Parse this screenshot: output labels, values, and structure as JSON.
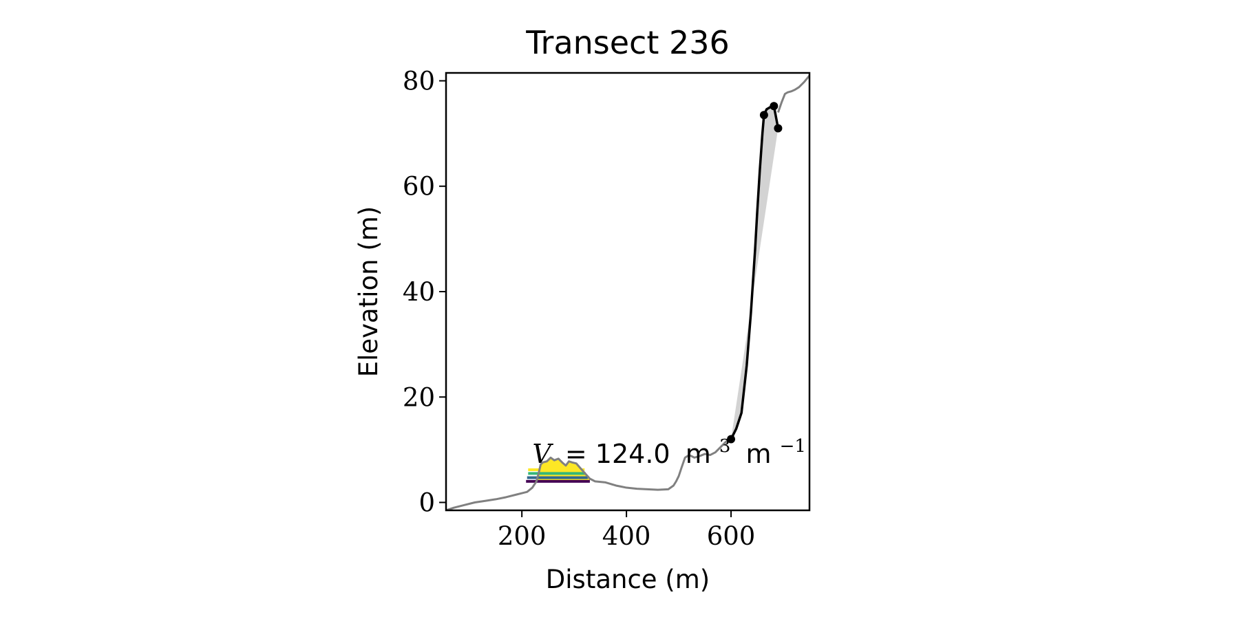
{
  "chart_data": {
    "type": "line",
    "title": "Transect 236",
    "xlabel": "Distance (m)",
    "ylabel": "Elevation (m)",
    "xlim": [
      55,
      750
    ],
    "ylim": [
      -1.5,
      81.5
    ],
    "xticks": [
      200,
      400,
      600
    ],
    "yticks": [
      0,
      20,
      40,
      60,
      80
    ],
    "grid": false,
    "annotation": {
      "var": "V",
      "equals": "= 124.0",
      "unit": "m",
      "exp1": "3",
      "unit2": "m",
      "exp2": "−1",
      "x": 220,
      "y": 7.5
    },
    "colors": {
      "profile": "#808080",
      "cliff": "#000000",
      "cliff_fill": "#d3d3d3",
      "dune_fill": "#fde725",
      "level_colors": [
        "#fde725",
        "#35b779",
        "#31688e",
        "#440154"
      ]
    },
    "series": [
      {
        "role": "profile",
        "x": [
          55,
          70,
          90,
          110,
          130,
          150,
          170,
          190,
          210,
          220,
          228,
          232,
          236,
          240,
          248,
          255,
          262,
          270,
          278,
          284,
          290,
          296,
          304,
          312,
          320,
          330,
          340,
          350,
          360,
          370,
          380,
          390,
          400,
          420,
          440,
          460,
          480,
          490,
          495,
          500,
          505,
          512,
          520,
          530,
          540,
          550,
          560,
          570,
          580,
          590,
          600
        ],
        "y": [
          -1.5,
          -1.0,
          -0.5,
          0.0,
          0.3,
          0.6,
          1.0,
          1.5,
          2.0,
          2.8,
          4.0,
          5.5,
          7.2,
          7.6,
          7.8,
          8.5,
          8.0,
          8.3,
          7.5,
          7.0,
          7.8,
          7.6,
          7.4,
          6.5,
          5.6,
          4.5,
          4.0,
          3.9,
          3.8,
          3.5,
          3.2,
          3.0,
          2.8,
          2.6,
          2.5,
          2.4,
          2.5,
          3.2,
          4.0,
          5.0,
          6.5,
          8.5,
          9.0,
          8.5,
          8.8,
          9.2,
          9.0,
          9.5,
          10.5,
          11.5,
          12.0
        ],
        "gaps": [
          [
            95,
            110
          ]
        ]
      },
      {
        "role": "profile-upper",
        "x": [
          690,
          697,
          703,
          708,
          715,
          722,
          730,
          740,
          750
        ],
        "y": [
          74.0,
          76.0,
          77.5,
          77.8,
          78.0,
          78.3,
          78.8,
          79.8,
          81.0
        ]
      },
      {
        "role": "cliff",
        "x": [
          600,
          610,
          620,
          630,
          638,
          642,
          646,
          650,
          655,
          660,
          663,
          668,
          675,
          682,
          690
        ],
        "y": [
          12.0,
          14.0,
          17.0,
          26.0,
          36.0,
          42.0,
          48.0,
          55.0,
          63.0,
          70.0,
          73.5,
          74.6,
          75.0,
          75.2,
          71.0
        ]
      }
    ],
    "cliff_points": [
      {
        "x": 600,
        "y": 12.0
      },
      {
        "x": 663,
        "y": 73.5
      },
      {
        "x": 682,
        "y": 75.2
      },
      {
        "x": 690,
        "y": 71.0
      }
    ],
    "levels": [
      {
        "y": 6.2,
        "x": [
          212,
          320
        ]
      },
      {
        "y": 5.5,
        "x": [
          212,
          322
        ]
      },
      {
        "y": 4.7,
        "x": [
          210,
          326
        ]
      },
      {
        "y": 4.0,
        "x": [
          208,
          330
        ]
      }
    ]
  }
}
